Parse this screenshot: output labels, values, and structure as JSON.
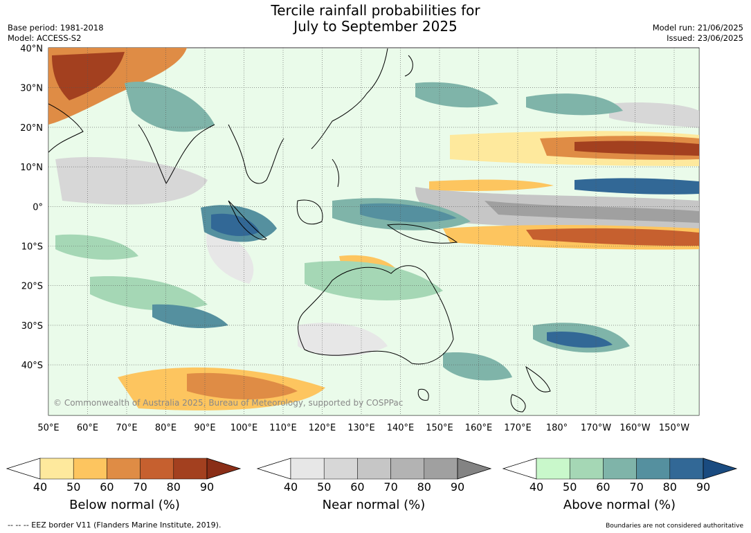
{
  "title": {
    "line1": "Tercile rainfall probabilities for",
    "line2": "July to September 2025"
  },
  "meta_left": {
    "base_period": "Base period: 1981-2018",
    "model": "Model: ACCESS-S2"
  },
  "meta_right": {
    "model_run": "Model run: 21/06/2025",
    "issued": "Issued: 23/06/2025"
  },
  "map": {
    "lat_labels": [
      "40°N",
      "30°N",
      "20°N",
      "10°N",
      "0°",
      "10°S",
      "20°S",
      "30°S",
      "40°S"
    ],
    "lon_labels": [
      "50°E",
      "60°E",
      "70°E",
      "80°E",
      "90°E",
      "100°E",
      "110°E",
      "120°E",
      "130°E",
      "140°E",
      "150°E",
      "160°E",
      "170°E",
      "180°",
      "170°W",
      "160°W",
      "150°W"
    ],
    "copyright": "© Commonwealth of Australia 2025, Bureau of Meteorology, supported by COSPPac"
  },
  "colorbars": [
    {
      "name": "below",
      "caption": "Below normal (%)",
      "ticks": [
        "40",
        "50",
        "60",
        "70",
        "80",
        "90"
      ],
      "colors": [
        "#fee99d",
        "#fdc55f",
        "#df8c45",
        "#c6602f",
        "#a3401f"
      ],
      "over_color": "#8a2e17"
    },
    {
      "name": "near",
      "caption": "Near normal (%)",
      "ticks": [
        "40",
        "50",
        "60",
        "70",
        "80",
        "90"
      ],
      "colors": [
        "#e7e7e7",
        "#d7d7d7",
        "#c6c6c6",
        "#b3b3b3",
        "#a0a0a0"
      ],
      "over_color": "#838383"
    },
    {
      "name": "above",
      "caption": "Above normal (%)",
      "ticks": [
        "40",
        "50",
        "60",
        "70",
        "80",
        "90"
      ],
      "colors": [
        "#c9f8cb",
        "#a5d7b5",
        "#7fb4a9",
        "#55909f",
        "#326896"
      ],
      "over_color": "#1a4b80"
    }
  ],
  "footer": {
    "left": "--  --  -- EEZ border V11 (Flanders Marine Institute, 2019).",
    "right": "Boundaries are not considered authoritative"
  }
}
